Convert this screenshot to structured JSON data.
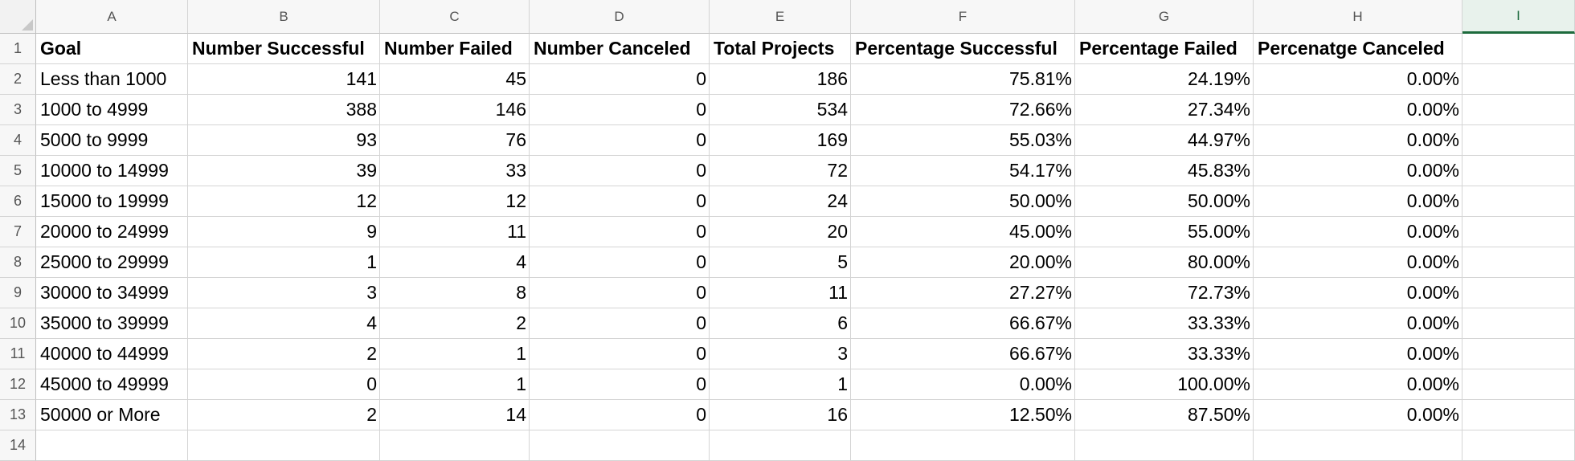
{
  "columns": [
    "A",
    "B",
    "C",
    "D",
    "E",
    "F",
    "G",
    "H",
    "I"
  ],
  "selected_column": "I",
  "row_numbers": [
    "1",
    "2",
    "3",
    "4",
    "5",
    "6",
    "7",
    "8",
    "9",
    "10",
    "11",
    "12",
    "13",
    "14"
  ],
  "header": [
    "Goal",
    "Number Successful",
    "Number Failed",
    "Number Canceled",
    "Total Projects",
    "Percentage Successful",
    "Percentage Failed",
    "Percenatge Canceled"
  ],
  "rows": [
    [
      "Less than 1000",
      "141",
      "45",
      "0",
      "186",
      "75.81%",
      "24.19%",
      "0.00%"
    ],
    [
      "1000 to 4999",
      "388",
      "146",
      "0",
      "534",
      "72.66%",
      "27.34%",
      "0.00%"
    ],
    [
      "5000 to 9999",
      "93",
      "76",
      "0",
      "169",
      "55.03%",
      "44.97%",
      "0.00%"
    ],
    [
      "10000 to 14999",
      "39",
      "33",
      "0",
      "72",
      "54.17%",
      "45.83%",
      "0.00%"
    ],
    [
      "15000 to 19999",
      "12",
      "12",
      "0",
      "24",
      "50.00%",
      "50.00%",
      "0.00%"
    ],
    [
      "20000 to 24999",
      "9",
      "11",
      "0",
      "20",
      "45.00%",
      "55.00%",
      "0.00%"
    ],
    [
      "25000 to 29999",
      "1",
      "4",
      "0",
      "5",
      "20.00%",
      "80.00%",
      "0.00%"
    ],
    [
      "30000 to 34999",
      "3",
      "8",
      "0",
      "11",
      "27.27%",
      "72.73%",
      "0.00%"
    ],
    [
      "35000 to 39999",
      "4",
      "2",
      "0",
      "6",
      "66.67%",
      "33.33%",
      "0.00%"
    ],
    [
      "40000 to 44999",
      "2",
      "1",
      "0",
      "3",
      "66.67%",
      "33.33%",
      "0.00%"
    ],
    [
      "45000 to 49999",
      "0",
      "1",
      "0",
      "1",
      "0.00%",
      "100.00%",
      "0.00%"
    ],
    [
      "50000 or More",
      "2",
      "14",
      "0",
      "16",
      "12.50%",
      "87.50%",
      "0.00%"
    ]
  ],
  "colors": {
    "selection_accent": "#1d6b3d",
    "gridline": "#d4d4d4",
    "header_bg": "#f7f7f7"
  }
}
